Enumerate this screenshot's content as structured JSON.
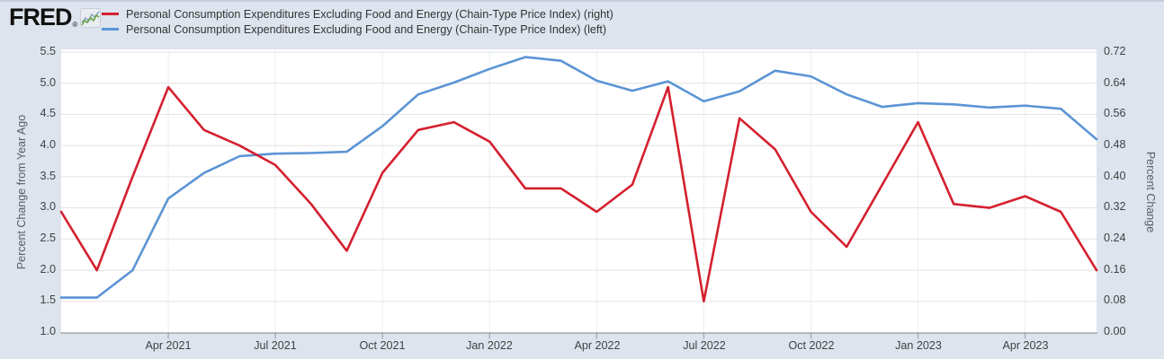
{
  "header": {
    "logo_text": "FRED",
    "registered_mark": "®",
    "legend": [
      {
        "label": "Personal Consumption Expenditures Excluding Food and Energy (Chain-Type Price Index) (right)",
        "color": "#d4202f"
      },
      {
        "label": "Personal Consumption Expenditures Excluding Food and Energy (Chain-Type Price Index) (left)",
        "color": "#5b94d5"
      }
    ]
  },
  "chart_data": {
    "type": "line",
    "title": "Personal Consumption Expenditures Excluding Food and Energy (Chain-Type Price Index)",
    "grid": true,
    "legend_position": "top",
    "x_tick_labels": [
      "Apr 2021",
      "Jul 2021",
      "Oct 2021",
      "Jan 2022",
      "Apr 2022",
      "Jul 2022",
      "Oct 2022",
      "Jan 2023",
      "Apr 2023"
    ],
    "months": [
      "2021-01",
      "2021-02",
      "2021-03",
      "2021-04",
      "2021-05",
      "2021-06",
      "2021-07",
      "2021-08",
      "2021-09",
      "2021-10",
      "2021-11",
      "2021-12",
      "2022-01",
      "2022-02",
      "2022-03",
      "2022-04",
      "2022-05",
      "2022-06",
      "2022-07",
      "2022-08",
      "2022-09",
      "2022-10",
      "2022-11",
      "2022-12",
      "2023-01",
      "2023-02",
      "2023-03",
      "2023-04",
      "2023-05",
      "2023-06"
    ],
    "left_axis": {
      "title": "Percent Change from Year Ago",
      "range": [
        1.0,
        5.5
      ],
      "ticks": [
        "5.5",
        "5.0",
        "4.5",
        "4.0",
        "3.5",
        "3.0",
        "2.5",
        "2.0",
        "1.5",
        "1.0"
      ]
    },
    "right_axis": {
      "title": "Percent Change",
      "range": [
        0.0,
        0.72
      ],
      "ticks": [
        "0.72",
        "0.64",
        "0.56",
        "0.48",
        "0.40",
        "0.32",
        "0.24",
        "0.16",
        "0.08",
        "0.00"
      ]
    },
    "series": [
      {
        "name": "Personal Consumption Expenditures Excluding Food and Energy (Chain-Type Price Index) (left)",
        "axis": "left",
        "color": "#5b94d5",
        "values": [
          1.56,
          1.56,
          2.0,
          3.15,
          3.56,
          3.83,
          3.87,
          3.88,
          3.9,
          4.31,
          4.82,
          5.01,
          5.23,
          5.42,
          5.36,
          5.04,
          4.88,
          5.03,
          4.71,
          4.87,
          5.2,
          5.11,
          4.82,
          4.62,
          4.68,
          4.66,
          4.61,
          4.64,
          4.59,
          4.1
        ]
      },
      {
        "name": "Personal Consumption Expenditures Excluding Food and Energy (Chain-Type Price Index) (right)",
        "axis": "right",
        "color": "#d4202f",
        "values": [
          0.31,
          0.16,
          0.4,
          0.63,
          0.52,
          0.48,
          0.43,
          0.33,
          0.21,
          0.41,
          0.52,
          0.54,
          0.49,
          0.37,
          0.37,
          0.31,
          0.38,
          0.63,
          0.08,
          0.55,
          0.47,
          0.31,
          0.22,
          0.38,
          0.54,
          0.33,
          0.32,
          0.35,
          0.31,
          0.16
        ]
      }
    ]
  }
}
